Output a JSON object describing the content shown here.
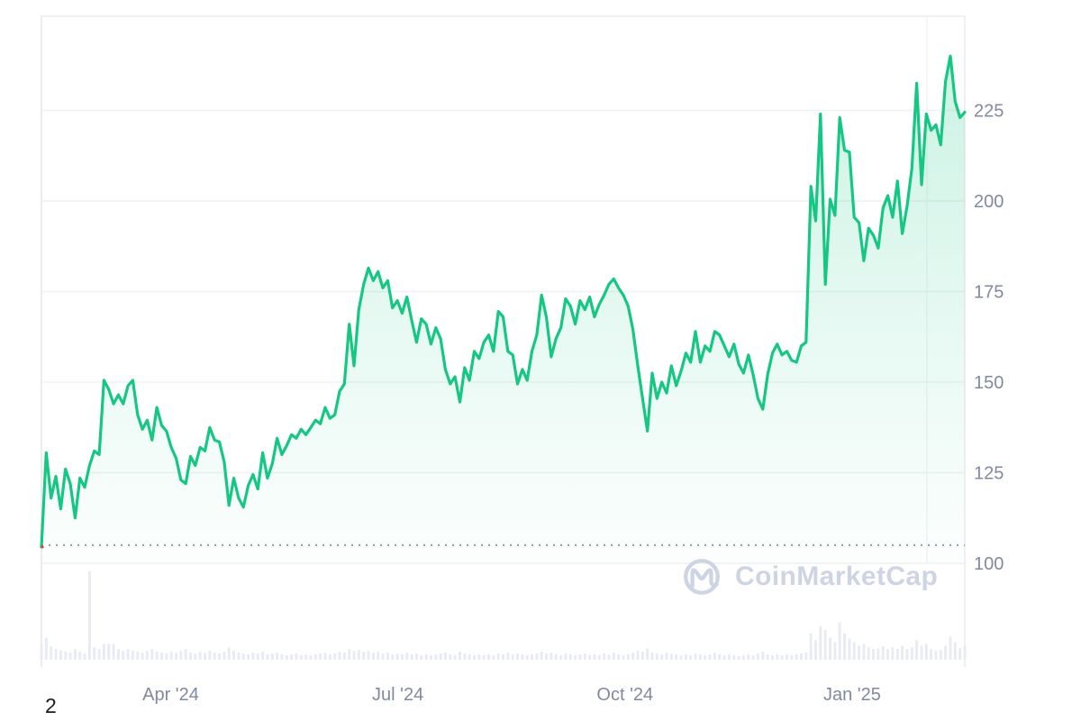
{
  "page": {
    "page_number": "2"
  },
  "watermark": {
    "brand": "CoinMarketCap",
    "logo_icon": "coinmarketcap-logo"
  },
  "chart_data": {
    "type": "area",
    "description": "Cryptocurrency price line chart with volume bars, spanning about one year (Feb 2024 - Feb 2025)",
    "x_start": "Feb 2024",
    "x_end": "Feb 2025",
    "point_interval": "approximately 2 days",
    "x_ticks": [
      {
        "label": "Apr '24",
        "fx": 0.14
      },
      {
        "label": "Jul '24",
        "fx": 0.386
      },
      {
        "label": "Oct '24",
        "fx": 0.632
      },
      {
        "label": "Jan '25",
        "fx": 0.878
      }
    ],
    "y_ticks": [
      {
        "label": "225",
        "value": 225
      },
      {
        "label": "200",
        "value": 200
      },
      {
        "label": "175",
        "value": 175
      },
      {
        "label": "150",
        "value": 150
      },
      {
        "label": "125",
        "value": 125
      },
      {
        "label": "100",
        "value": 100
      }
    ],
    "ylim": [
      100,
      245
    ],
    "dotted_reference_level": 105,
    "grid": true,
    "legend": false,
    "series": [
      {
        "name": "price",
        "values": [
          104.5,
          130.5,
          118,
          124,
          115,
          126,
          122,
          112.5,
          123.5,
          121,
          127,
          131,
          130,
          150.5,
          148,
          144,
          146.5,
          144,
          149,
          150.5,
          141,
          137,
          139.5,
          134,
          143,
          138,
          136.5,
          132,
          129,
          123,
          122,
          129.5,
          127,
          132,
          131,
          137.5,
          134,
          133.5,
          128,
          116,
          123.5,
          118,
          115.5,
          121.5,
          124.5,
          120.5,
          130.5,
          123.5,
          127.5,
          134.5,
          130,
          132.5,
          135.5,
          134.5,
          137,
          135.5,
          137.5,
          139.5,
          138.5,
          143,
          140,
          141,
          147.5,
          149.5,
          166,
          154.5,
          170,
          177,
          181.5,
          178,
          180.5,
          176,
          178,
          170.5,
          172.5,
          169,
          173.5,
          167,
          161,
          167.5,
          166,
          160.5,
          165,
          162,
          153.5,
          149.5,
          151.5,
          144.5,
          154,
          150.5,
          158.5,
          156.5,
          161,
          163,
          158.5,
          169.5,
          168,
          158.5,
          157.5,
          149.5,
          153.5,
          150.5,
          158.5,
          163,
          174,
          168,
          157,
          162,
          165,
          173,
          171,
          166,
          172.5,
          170,
          173.5,
          168,
          171.5,
          174,
          177,
          178.5,
          176,
          174,
          171,
          164.5,
          154.5,
          145.5,
          136.5,
          152.5,
          145.5,
          150,
          147,
          154.5,
          149,
          153,
          158,
          155.5,
          164,
          155.5,
          160,
          158.5,
          164,
          163,
          160,
          157,
          160.5,
          155,
          152.5,
          157.5,
          152,
          145.5,
          142.5,
          152,
          158,
          160.5,
          157.5,
          158.5,
          156,
          155.5,
          160,
          161,
          204,
          194.5,
          224,
          177,
          200.5,
          196,
          223,
          214,
          213.5,
          195.5,
          194,
          183.5,
          192.5,
          190.5,
          187,
          198,
          201.5,
          195.5,
          205.5,
          191,
          198.5,
          209,
          232.5,
          204.5,
          224,
          219.5,
          221,
          215.5,
          233,
          240,
          227.5,
          223,
          224.5
        ]
      }
    ],
    "volume": {
      "unit": "relative (0-100 of volume pane height)",
      "values": [
        18,
        25,
        15,
        12,
        10,
        9,
        8,
        12,
        9,
        7,
        100,
        14,
        12,
        18,
        18,
        18,
        12,
        10,
        12,
        10,
        9,
        8,
        10,
        12,
        9,
        8,
        7,
        9,
        8,
        10,
        12,
        8,
        7,
        9,
        8,
        10,
        8,
        7,
        9,
        14,
        10,
        8,
        7,
        6,
        8,
        7,
        9,
        6,
        7,
        8,
        6,
        5,
        6,
        7,
        5,
        6,
        5,
        6,
        7,
        8,
        6,
        7,
        9,
        8,
        12,
        10,
        11,
        9,
        10,
        8,
        9,
        7,
        8,
        6,
        7,
        6,
        8,
        6,
        7,
        5,
        6,
        5,
        6,
        7,
        8,
        6,
        5,
        9,
        7,
        6,
        5,
        6,
        5,
        6,
        5,
        7,
        6,
        8,
        6,
        7,
        6,
        5,
        6,
        7,
        9,
        7,
        8,
        6,
        5,
        7,
        6,
        5,
        6,
        7,
        5,
        6,
        5,
        7,
        6,
        8,
        6,
        5,
        6,
        8,
        10,
        9,
        13,
        8,
        7,
        6,
        8,
        7,
        6,
        5,
        6,
        5,
        7,
        6,
        5,
        6,
        8,
        6,
        5,
        6,
        5,
        4,
        5,
        6,
        5,
        7,
        9,
        6,
        5,
        6,
        5,
        6,
        5,
        6,
        7,
        8,
        30,
        22,
        38,
        34,
        25,
        20,
        42,
        30,
        24,
        20,
        16,
        18,
        14,
        12,
        13,
        15,
        12,
        14,
        12,
        16,
        12,
        14,
        22,
        16,
        18,
        12,
        10,
        11,
        16,
        26,
        20,
        13,
        15
      ]
    },
    "colors": {
      "line": "#16c784",
      "fill_top": "rgba(22,199,132,0.22)",
      "fill_mid": "rgba(22,199,132,0.06)",
      "fill_bottom": "rgba(22,199,132,0.01)",
      "grid": "#f0f1f4",
      "border": "#ececf0",
      "axis_label": "#7f8aa0",
      "dotted_line": "#8f99ad",
      "volume_bar": "#e8ecf2",
      "watermark": "#cdd5e4",
      "start_marker": "#ea3943"
    }
  }
}
